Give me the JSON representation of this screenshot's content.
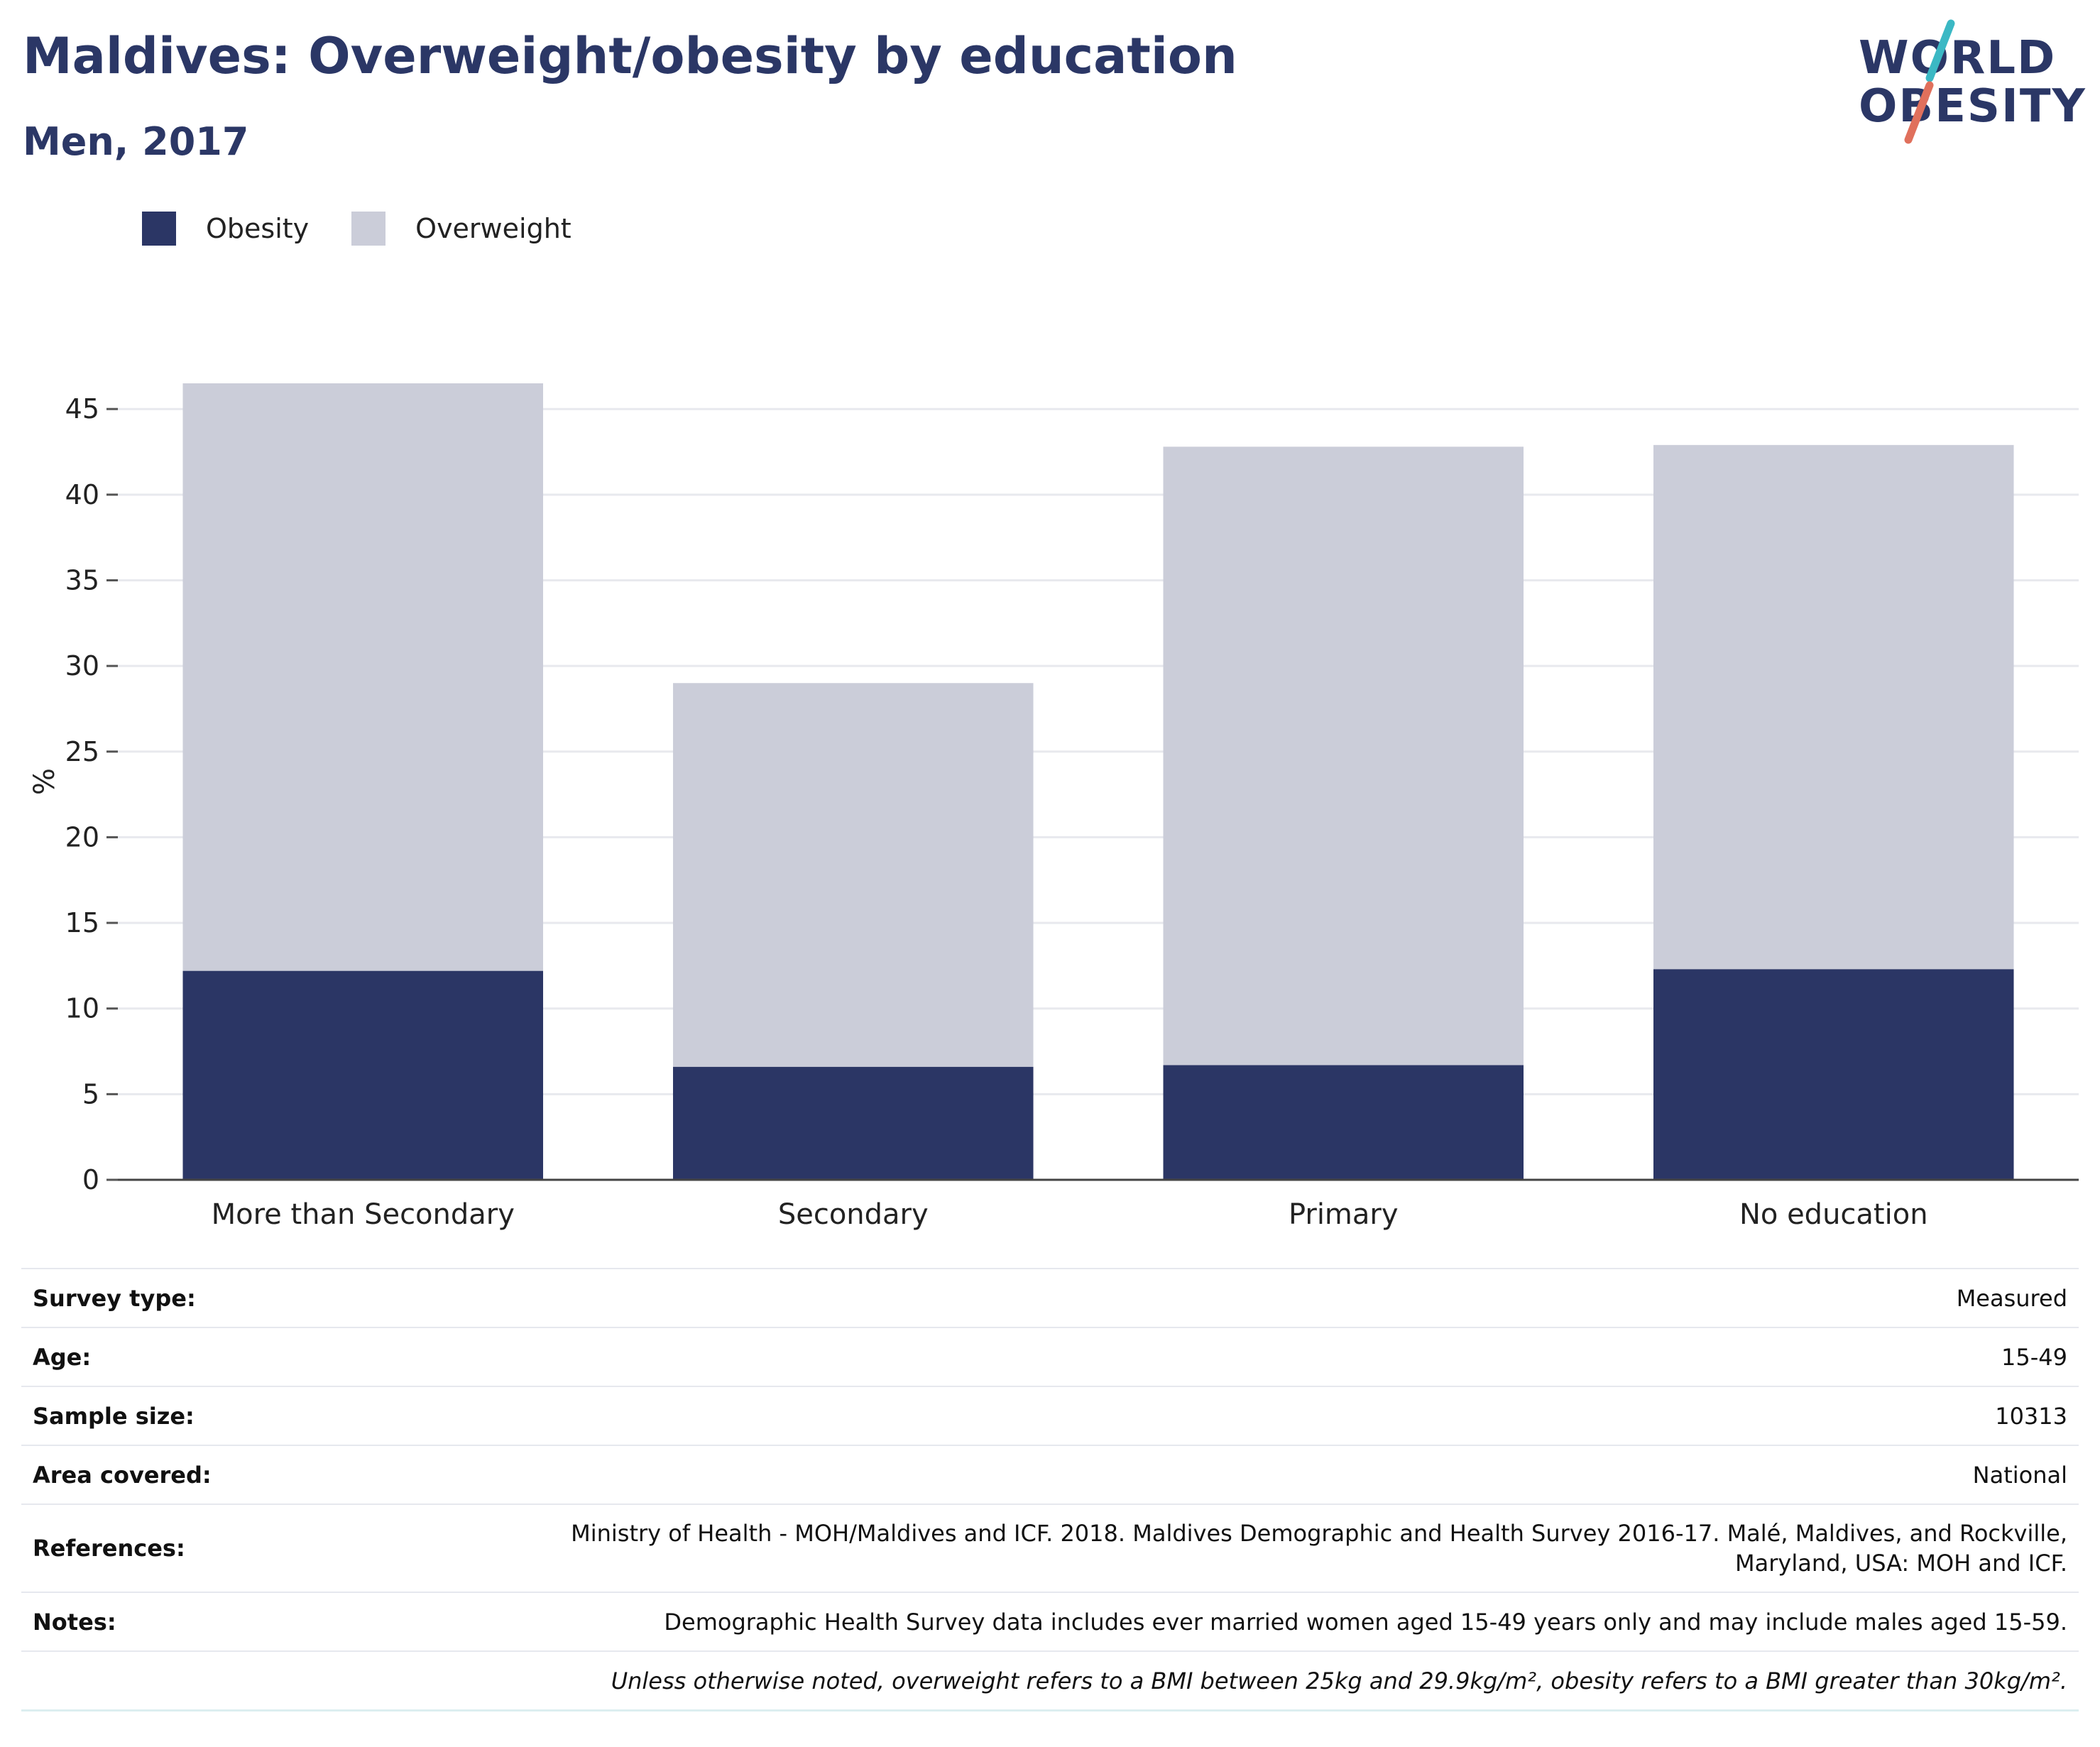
{
  "header": {
    "title": "Maldives: Overweight/obesity by education",
    "subtitle": "Men, 2017"
  },
  "logo": {
    "line1": "WORLD",
    "line2": "OBESITY",
    "colors": {
      "text": "#2b3766",
      "slash_top": "#3bb8c4",
      "slash_bottom": "#e0705c"
    }
  },
  "legend": {
    "items": [
      {
        "label": "Obesity",
        "color": "#2b3665"
      },
      {
        "label": "Overweight",
        "color": "#cbcdd9"
      }
    ]
  },
  "chart_data": {
    "type": "bar",
    "stacked": true,
    "categories": [
      "More than Secondary",
      "Secondary",
      "Primary",
      "No education"
    ],
    "series": [
      {
        "name": "Obesity",
        "color": "#2b3665",
        "values": [
          12.2,
          6.6,
          6.7,
          12.3
        ]
      },
      {
        "name": "Overweight",
        "color": "#cbcdd9",
        "values": [
          34.3,
          22.4,
          36.1,
          30.6
        ]
      }
    ],
    "ylabel": "%",
    "xlabel": "",
    "ylim": [
      0,
      46.5
    ],
    "yticks": [
      0,
      5,
      10,
      15,
      20,
      25,
      30,
      35,
      40,
      45
    ],
    "grid": true,
    "legend_position": "top-left"
  },
  "info": {
    "rows": [
      {
        "key": "Survey type:",
        "value": "Measured"
      },
      {
        "key": "Age:",
        "value": "15-49"
      },
      {
        "key": "Sample size:",
        "value": "10313"
      },
      {
        "key": "Area covered:",
        "value": "National"
      },
      {
        "key": "References:",
        "value_line1": "Ministry of Health - MOH/Maldives and ICF. 2018. Maldives Demographic and Health Survey 2016-17. Malé, Maldives, and Rockville,",
        "value_line2": "Maryland, USA: MOH and ICF."
      },
      {
        "key": "Notes:",
        "value": "Demographic Health Survey data includes ever married women aged 15-49 years only and may include males aged 15-59."
      }
    ],
    "footnote": "Unless otherwise noted, overweight refers to a BMI between 25kg and 29.9kg/m², obesity refers to a BMI greater than 30kg/m²."
  }
}
